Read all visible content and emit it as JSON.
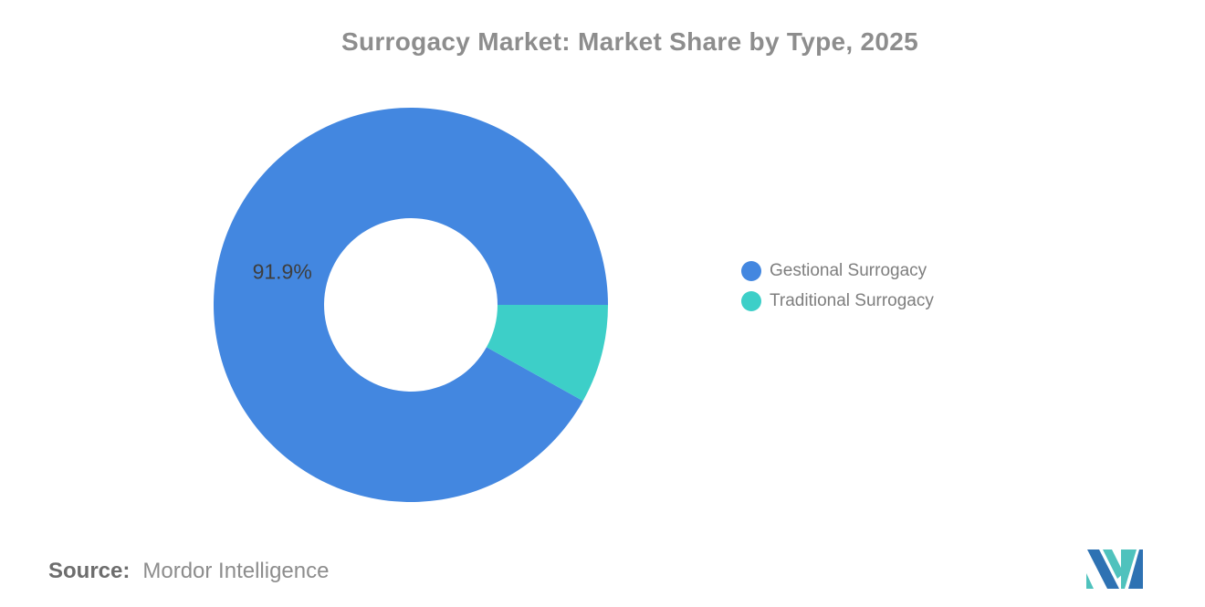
{
  "title": "Surrogacy Market: Market Share by Type, 2025",
  "source": {
    "prefix": "Source:",
    "text": "Mordor Intelligence"
  },
  "colors": {
    "accent_blue": "#4387e0",
    "accent_teal": "#3dcfc8",
    "title_text": "#8d8d8d",
    "legend_text": "#7e7e7e",
    "slice_label": "#3e3e3e",
    "source_bold": "#6d6d6d",
    "source_text": "#8d8d8d",
    "background": "#ffffff",
    "logo_blue": "#2e72b3",
    "logo_teal": "#4fc2bd"
  },
  "chart_data": {
    "type": "pie",
    "subtype": "donut",
    "title": "Surrogacy Market: Market Share by Type, 2025",
    "units": "percent",
    "legend_position": "right",
    "rotation_deg": 119.16,
    "categories": [
      "Gestional Surrogacy",
      "Traditional Surrogacy"
    ],
    "values": [
      91.9,
      8.1
    ],
    "series": [
      {
        "name": "Gestional Surrogacy",
        "value": 91.9,
        "color": "#4387e0",
        "label": "91.9%",
        "label_visible": true
      },
      {
        "name": "Traditional Surrogacy",
        "value": 8.1,
        "color": "#3dcfc8",
        "label": "8.1%",
        "label_visible": false
      }
    ]
  }
}
